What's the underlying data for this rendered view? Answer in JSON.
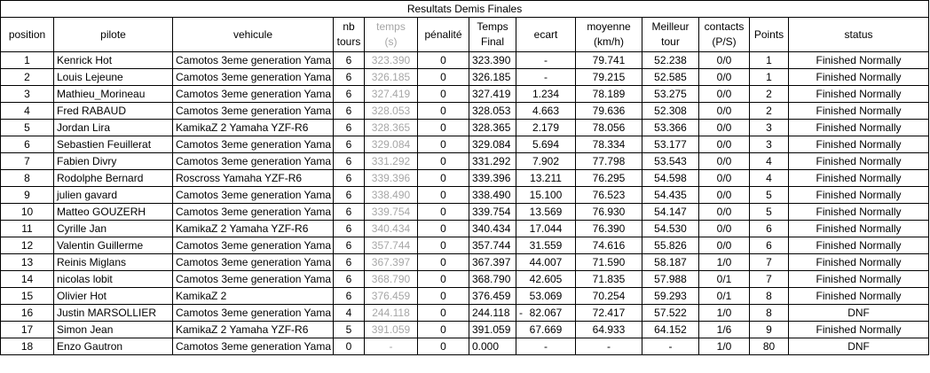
{
  "table_title": "Resultats Demis Finales",
  "headers": {
    "position": "position",
    "pilote": "pilote",
    "vehicule": "vehicule",
    "nb_tours": [
      "nb",
      "tours"
    ],
    "temps": [
      "temps",
      "(s)"
    ],
    "penalite": "pénalité",
    "temps_final": [
      "Temps",
      "Final"
    ],
    "ecart": "ecart",
    "moyenne": [
      "moyenne",
      "(km/h)"
    ],
    "meilleur_tour": [
      "Meilleur",
      "tour"
    ],
    "contacts": [
      "contacts",
      "(P/S)"
    ],
    "points": "Points",
    "status": "status"
  },
  "rows": [
    {
      "position": "1",
      "pilote": "Kenrick Hot",
      "vehicule": "Camotos 3eme generation Yama",
      "tours": "6",
      "temps": "323.390",
      "penalite": "0",
      "temps_final": "323.390",
      "ecart": "-",
      "moyenne": "79.741",
      "meilleur": "52.238",
      "contacts": "0/0",
      "points": "1",
      "status": "Finished Normally"
    },
    {
      "position": "2",
      "pilote": "Louis Lejeune",
      "vehicule": "Camotos 3eme generation Yama",
      "tours": "6",
      "temps": "326.185",
      "penalite": "0",
      "temps_final": "326.185",
      "ecart": "-",
      "moyenne": "79.215",
      "meilleur": "52.585",
      "contacts": "0/0",
      "points": "1",
      "status": "Finished Normally"
    },
    {
      "position": "3",
      "pilote": "Mathieu_Morineau",
      "vehicule": "Camotos 3eme generation Yama",
      "tours": "6",
      "temps": "327.419",
      "penalite": "0",
      "temps_final": "327.419",
      "ecart": "1.234",
      "moyenne": "78.189",
      "meilleur": "53.275",
      "contacts": "0/0",
      "points": "2",
      "status": "Finished Normally"
    },
    {
      "position": "4",
      "pilote": "Fred RABAUD",
      "vehicule": "Camotos 3eme generation Yama",
      "tours": "6",
      "temps": "328.053",
      "penalite": "0",
      "temps_final": "328.053",
      "ecart": "4.663",
      "moyenne": "79.636",
      "meilleur": "52.308",
      "contacts": "0/0",
      "points": "2",
      "status": "Finished Normally"
    },
    {
      "position": "5",
      "pilote": "Jordan Lira",
      "vehicule": "KamikaZ 2 Yamaha YZF-R6",
      "tours": "6",
      "temps": "328.365",
      "penalite": "0",
      "temps_final": "328.365",
      "ecart": "2.179",
      "moyenne": "78.056",
      "meilleur": "53.366",
      "contacts": "0/0",
      "points": "3",
      "status": "Finished Normally"
    },
    {
      "position": "6",
      "pilote": "Sebastien Feuillerat",
      "vehicule": "Camotos 3eme generation Yama",
      "tours": "6",
      "temps": "329.084",
      "penalite": "0",
      "temps_final": "329.084",
      "ecart": "5.694",
      "moyenne": "78.334",
      "meilleur": "53.177",
      "contacts": "0/0",
      "points": "3",
      "status": "Finished Normally"
    },
    {
      "position": "7",
      "pilote": "Fabien Divry",
      "vehicule": "Camotos 3eme generation Yama",
      "tours": "6",
      "temps": "331.292",
      "penalite": "0",
      "temps_final": "331.292",
      "ecart": "7.902",
      "moyenne": "77.798",
      "meilleur": "53.543",
      "contacts": "0/0",
      "points": "4",
      "status": "Finished Normally"
    },
    {
      "position": "8",
      "pilote": "Rodolphe Bernard",
      "vehicule": "Roscross Yamaha YZF-R6",
      "tours": "6",
      "temps": "339.396",
      "penalite": "0",
      "temps_final": "339.396",
      "ecart": "13.211",
      "moyenne": "76.295",
      "meilleur": "54.598",
      "contacts": "0/0",
      "points": "4",
      "status": "Finished Normally"
    },
    {
      "position": "9",
      "pilote": "julien gavard",
      "vehicule": "Camotos 3eme generation Yama",
      "tours": "6",
      "temps": "338.490",
      "penalite": "0",
      "temps_final": "338.490",
      "ecart": "15.100",
      "moyenne": "76.523",
      "meilleur": "54.435",
      "contacts": "0/0",
      "points": "5",
      "status": "Finished Normally"
    },
    {
      "position": "10",
      "pilote": "Matteo GOUZERH",
      "vehicule": "Camotos 3eme generation Yama",
      "tours": "6",
      "temps": "339.754",
      "penalite": "0",
      "temps_final": "339.754",
      "ecart": "13.569",
      "moyenne": "76.930",
      "meilleur": "54.147",
      "contacts": "0/0",
      "points": "5",
      "status": "Finished Normally"
    },
    {
      "position": "11",
      "pilote": "Cyrille Jan",
      "vehicule": "KamikaZ 2 Yamaha YZF-R6",
      "tours": "6",
      "temps": "340.434",
      "penalite": "0",
      "temps_final": "340.434",
      "ecart": "17.044",
      "moyenne": "76.390",
      "meilleur": "54.530",
      "contacts": "0/0",
      "points": "6",
      "status": "Finished Normally"
    },
    {
      "position": "12",
      "pilote": "Valentin Guillerme",
      "vehicule": "Camotos 3eme generation Yama",
      "tours": "6",
      "temps": "357.744",
      "penalite": "0",
      "temps_final": "357.744",
      "ecart": "31.559",
      "moyenne": "74.616",
      "meilleur": "55.826",
      "contacts": "0/0",
      "points": "6",
      "status": "Finished Normally"
    },
    {
      "position": "13",
      "pilote": "Reinis Miglans",
      "vehicule": "Camotos 3eme generation Yama",
      "tours": "6",
      "temps": "367.397",
      "penalite": "0",
      "temps_final": "367.397",
      "ecart": "44.007",
      "moyenne": "71.590",
      "meilleur": "58.187",
      "contacts": "1/0",
      "points": "7",
      "status": "Finished Normally"
    },
    {
      "position": "14",
      "pilote": "nicolas lobit",
      "vehicule": "Camotos 3eme generation Yama",
      "tours": "6",
      "temps": "368.790",
      "penalite": "0",
      "temps_final": "368.790",
      "ecart": "42.605",
      "moyenne": "71.835",
      "meilleur": "57.988",
      "contacts": "0/1",
      "points": "7",
      "status": "Finished Normally"
    },
    {
      "position": "15",
      "pilote": "Olivier Hot",
      "vehicule": "KamikaZ 2",
      "tours": "6",
      "temps": "376.459",
      "penalite": "0",
      "temps_final": "376.459",
      "ecart": "53.069",
      "moyenne": "70.254",
      "meilleur": "59.293",
      "contacts": "0/1",
      "points": "8",
      "status": "Finished Normally"
    },
    {
      "position": "16",
      "pilote": "Justin MARSOLLIER",
      "vehicule": "Camotos 3eme generation Yama",
      "tours": "4",
      "temps": "244.118",
      "penalite": "0",
      "temps_final": "244.118",
      "ecart": "82.067",
      "ecart_prefix": "-",
      "moyenne": "72.417",
      "meilleur": "57.522",
      "contacts": "1/0",
      "points": "8",
      "status": "DNF"
    },
    {
      "position": "17",
      "pilote": "Simon Jean",
      "vehicule": "KamikaZ 2 Yamaha YZF-R6",
      "tours": "5",
      "temps": "391.059",
      "penalite": "0",
      "temps_final": "391.059",
      "ecart": "67.669",
      "moyenne": "64.933",
      "meilleur": "64.152",
      "contacts": "1/6",
      "points": "9",
      "status": "Finished Normally"
    },
    {
      "position": "18",
      "pilote": "Enzo Gautron",
      "vehicule": "Camotos 3eme generation Yama",
      "tours": "0",
      "temps": "-",
      "penalite": "0",
      "temps_final": "0.000",
      "ecart": "-",
      "moyenne": "-",
      "meilleur": "-",
      "contacts": "1/0",
      "points": "80",
      "status": "DNF"
    }
  ],
  "colors": {
    "grey_text": "#a6a6a6",
    "border": "#000000"
  }
}
